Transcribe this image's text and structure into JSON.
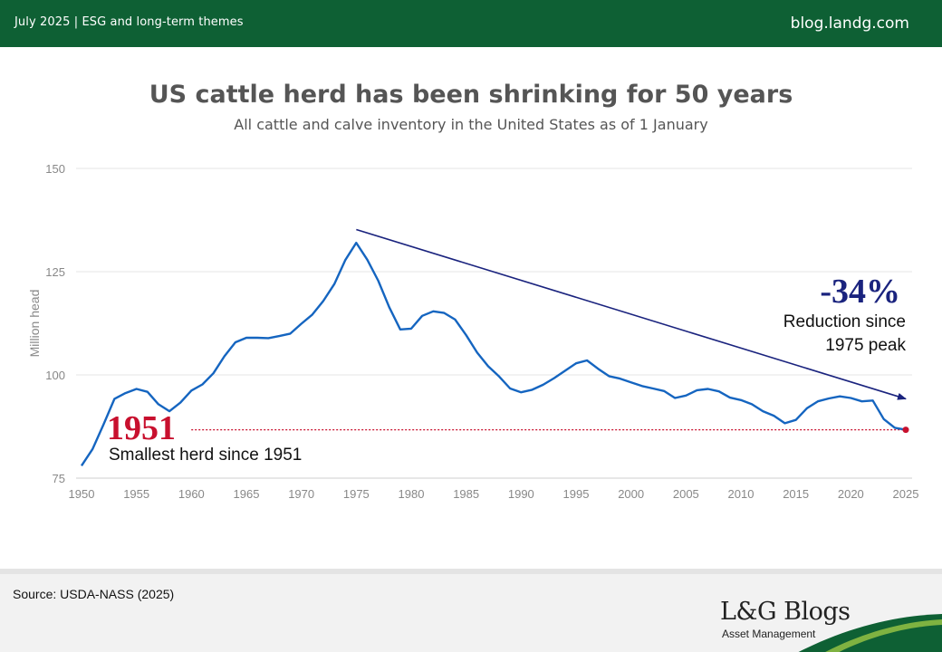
{
  "header": {
    "left_text": "July 2025 | ESG and long-term themes",
    "right_text": "blog.landg.com"
  },
  "colors": {
    "header_green": "#0e6034",
    "series_blue": "#1565c0",
    "trend_navy": "#1a237e",
    "highlight_red": "#c8102e"
  },
  "chart_data": {
    "type": "line",
    "title": "US cattle herd has been shrinking for 50 years",
    "subtitle": "All cattle and calve inventory in the United States as of 1 January",
    "ylabel": "Million head",
    "xlabel": "",
    "xlim": [
      1950,
      2025
    ],
    "ylim": [
      75,
      150
    ],
    "y_ticks": [
      75,
      100,
      125,
      150
    ],
    "x_ticks": [
      1950,
      1955,
      1960,
      1965,
      1970,
      1975,
      1980,
      1985,
      1990,
      1995,
      2000,
      2005,
      2010,
      2015,
      2020,
      2025
    ],
    "grid": "horizontal",
    "series": [
      {
        "name": "",
        "x": [
          1950,
          1951,
          1952,
          1953,
          1954,
          1955,
          1956,
          1957,
          1958,
          1959,
          1960,
          1961,
          1962,
          1963,
          1964,
          1965,
          1966,
          1967,
          1968,
          1969,
          1970,
          1971,
          1972,
          1973,
          1974,
          1975,
          1976,
          1977,
          1978,
          1979,
          1980,
          1981,
          1982,
          1983,
          1984,
          1985,
          1986,
          1987,
          1988,
          1989,
          1990,
          1991,
          1992,
          1993,
          1994,
          1995,
          1996,
          1997,
          1998,
          1999,
          2000,
          2001,
          2002,
          2003,
          2004,
          2005,
          2006,
          2007,
          2008,
          2009,
          2010,
          2011,
          2012,
          2013,
          2014,
          2015,
          2016,
          2017,
          2018,
          2019,
          2020,
          2021,
          2022,
          2023,
          2024,
          2025
        ],
        "values": [
          78.0,
          82.0,
          88.0,
          94.2,
          95.6,
          96.6,
          95.9,
          92.9,
          91.2,
          93.3,
          96.2,
          97.7,
          100.4,
          104.5,
          107.9,
          109.0,
          109.0,
          108.9,
          109.4,
          110.0,
          112.4,
          114.6,
          117.9,
          122.0,
          127.8,
          132.0,
          127.9,
          122.8,
          116.4,
          111.0,
          111.2,
          114.3,
          115.4,
          115.0,
          113.4,
          109.6,
          105.4,
          102.1,
          99.6,
          96.7,
          95.8,
          96.4,
          97.6,
          99.2,
          101.0,
          102.8,
          103.5,
          101.5,
          99.7,
          99.1,
          98.2,
          97.3,
          96.7,
          96.1,
          94.4,
          95.0,
          96.3,
          96.6,
          96.0,
          94.5,
          93.9,
          92.9,
          91.2,
          90.1,
          88.3,
          89.1,
          91.9,
          93.6,
          94.3,
          94.8,
          94.4,
          93.6,
          93.8,
          89.3,
          87.2,
          86.7
        ]
      }
    ],
    "trend_arrow": {
      "from": [
        1975,
        135.2
      ],
      "to": [
        2025,
        94.2
      ]
    },
    "end_point": {
      "x": 2025,
      "y": 86.7
    },
    "reference_line": {
      "y": 86.7,
      "from_x": 1959,
      "to_x": 2025
    },
    "annotations": {
      "reduction_value": "-34%",
      "reduction_text_line1": "Reduction since",
      "reduction_text_line2": "1975 peak",
      "year_value": "1951",
      "year_text": "Smallest herd since 1951"
    }
  },
  "footer": {
    "source": "Source: USDA-NASS (2025)",
    "brand_name": "L&G Blogs",
    "brand_subtitle": "Asset Management"
  }
}
